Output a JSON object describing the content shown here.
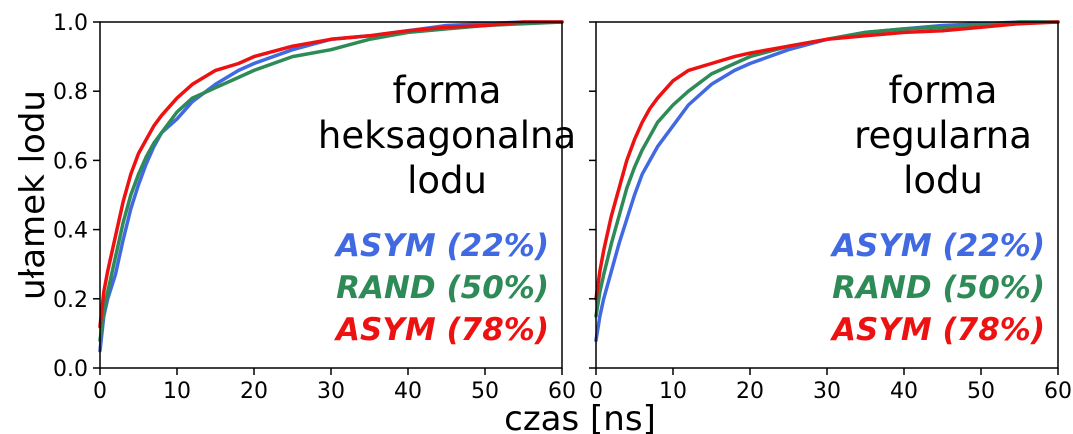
{
  "figure": {
    "ylabel": "ułamek lodu",
    "xlabel": "czas [ns]"
  },
  "colors": {
    "blue": "#4169e1",
    "green": "#2e8b57",
    "red": "#ee1111"
  },
  "chart_data": [
    {
      "type": "line",
      "panel_text": [
        "forma",
        "heksagonalna",
        "lodu"
      ],
      "xlabel": "czas [ns]",
      "ylabel": "ułamek lodu",
      "xlim": [
        0,
        60
      ],
      "ylim": [
        0,
        1.0
      ],
      "xticks": [
        "0",
        "10",
        "20",
        "30",
        "40",
        "50",
        "60"
      ],
      "yticks": [
        "0.0",
        "0.2",
        "0.4",
        "0.6",
        "0.8",
        "1.0"
      ],
      "grid": false,
      "legend": "right, below panel text",
      "series": [
        {
          "name": "ASYM (22%)",
          "color": "blue",
          "x": [
            0,
            0.5,
            1,
            2,
            3,
            4,
            5,
            6,
            7,
            8,
            10,
            12,
            15,
            18,
            20,
            25,
            30,
            35,
            40,
            45,
            50,
            55,
            60
          ],
          "y": [
            0.05,
            0.15,
            0.2,
            0.27,
            0.37,
            0.46,
            0.53,
            0.59,
            0.64,
            0.68,
            0.72,
            0.77,
            0.82,
            0.86,
            0.88,
            0.92,
            0.95,
            0.96,
            0.975,
            0.99,
            0.995,
            1.0,
            1.0
          ]
        },
        {
          "name": "RAND (50%)",
          "color": "green",
          "x": [
            0,
            0.5,
            1,
            2,
            3,
            4,
            5,
            6,
            7,
            8,
            10,
            12,
            15,
            18,
            20,
            25,
            30,
            35,
            40,
            45,
            50,
            55,
            60
          ],
          "y": [
            0.08,
            0.16,
            0.22,
            0.32,
            0.42,
            0.5,
            0.56,
            0.61,
            0.65,
            0.68,
            0.74,
            0.78,
            0.81,
            0.84,
            0.86,
            0.9,
            0.92,
            0.95,
            0.97,
            0.98,
            0.99,
            0.995,
            1.0
          ]
        },
        {
          "name": "ASYM (78%)",
          "color": "red",
          "x": [
            0,
            0.5,
            1,
            2,
            3,
            4,
            5,
            6,
            7,
            8,
            10,
            12,
            15,
            18,
            20,
            25,
            30,
            35,
            40,
            45,
            50,
            55,
            60
          ],
          "y": [
            0.12,
            0.22,
            0.28,
            0.38,
            0.48,
            0.56,
            0.62,
            0.66,
            0.7,
            0.73,
            0.78,
            0.82,
            0.86,
            0.88,
            0.9,
            0.93,
            0.95,
            0.96,
            0.975,
            0.985,
            0.99,
            1.0,
            1.0
          ]
        }
      ]
    },
    {
      "type": "line",
      "panel_text": [
        "forma",
        "regularna",
        "lodu"
      ],
      "xlabel": "czas [ns]",
      "ylabel": "ułamek lodu",
      "xlim": [
        0,
        60
      ],
      "ylim": [
        0,
        1.0
      ],
      "xticks": [
        "0",
        "10",
        "20",
        "30",
        "40",
        "50",
        "60"
      ],
      "yticks": [
        "0.0",
        "0.2",
        "0.4",
        "0.6",
        "0.8",
        "1.0"
      ],
      "grid": false,
      "legend": "right, below panel text",
      "series": [
        {
          "name": "ASYM (22%)",
          "color": "blue",
          "x": [
            0,
            0.5,
            1,
            2,
            3,
            4,
            5,
            6,
            7,
            8,
            10,
            12,
            15,
            18,
            20,
            25,
            30,
            35,
            40,
            45,
            50,
            55,
            60
          ],
          "y": [
            0.08,
            0.15,
            0.2,
            0.28,
            0.36,
            0.43,
            0.5,
            0.56,
            0.6,
            0.64,
            0.7,
            0.76,
            0.82,
            0.86,
            0.88,
            0.92,
            0.95,
            0.97,
            0.98,
            0.99,
            0.995,
            1.0,
            1.0
          ]
        },
        {
          "name": "RAND (50%)",
          "color": "green",
          "x": [
            0,
            0.5,
            1,
            2,
            3,
            4,
            5,
            6,
            7,
            8,
            10,
            12,
            15,
            18,
            20,
            25,
            30,
            35,
            40,
            45,
            50,
            55,
            60
          ],
          "y": [
            0.15,
            0.22,
            0.27,
            0.36,
            0.44,
            0.52,
            0.58,
            0.63,
            0.67,
            0.71,
            0.76,
            0.8,
            0.85,
            0.88,
            0.9,
            0.93,
            0.95,
            0.97,
            0.98,
            0.985,
            0.99,
            1.0,
            1.0
          ]
        },
        {
          "name": "ASYM (78%)",
          "color": "red",
          "x": [
            0,
            0.5,
            1,
            2,
            3,
            4,
            5,
            6,
            7,
            8,
            10,
            12,
            15,
            18,
            20,
            25,
            30,
            35,
            40,
            45,
            50,
            55,
            60
          ],
          "y": [
            0.2,
            0.28,
            0.34,
            0.44,
            0.52,
            0.6,
            0.66,
            0.71,
            0.75,
            0.78,
            0.83,
            0.86,
            0.88,
            0.9,
            0.91,
            0.93,
            0.95,
            0.96,
            0.97,
            0.975,
            0.985,
            0.995,
            1.0
          ]
        }
      ]
    }
  ]
}
